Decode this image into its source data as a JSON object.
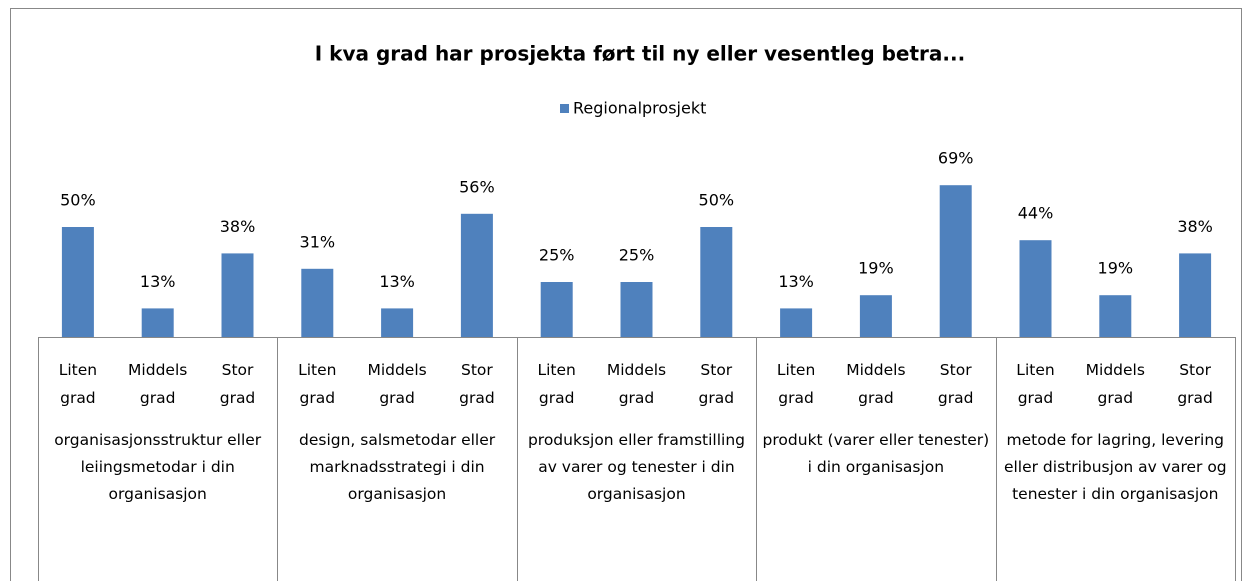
{
  "chart_data": {
    "type": "bar",
    "title": "I kva grad har prosjekta ført til ny eller vesentleg betra...",
    "groups": [
      "organisasjonsstruktur eller leiingsmetodar i din organisasjon",
      "design, salsmetodar eller marknadsstrategi i din organisasjon",
      "produksjon eller framstilling av varer og tenester i din organisasjon",
      "produkt (varer eller tenester) i din organisasjon",
      "metode for lagring, levering eller distribusjon av varer og tenester i din organisasjon"
    ],
    "categories": [
      "Liten grad",
      "Middels grad",
      "Stor grad",
      "Liten grad",
      "Middels grad",
      "Stor grad",
      "Liten grad",
      "Middels grad",
      "Stor grad",
      "Liten grad",
      "Middels grad",
      "Stor grad",
      "Liten grad",
      "Middels grad",
      "Stor grad"
    ],
    "series": [
      {
        "name": "Regionalprosjekt",
        "color": "#4f81bd",
        "values": [
          50,
          13,
          38,
          31,
          13,
          56,
          25,
          25,
          50,
          13,
          19,
          69,
          44,
          19,
          38
        ],
        "value_labels": [
          "50%",
          "13%",
          "38%",
          "31%",
          "13%",
          "56%",
          "25%",
          "25%",
          "50%",
          "13%",
          "19%",
          "69%",
          "44%",
          "19%",
          "38%"
        ]
      }
    ]
  }
}
